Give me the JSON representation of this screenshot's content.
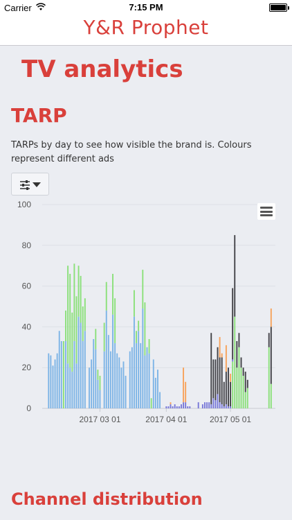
{
  "status_bar": {
    "carrier": "Carrier",
    "time": "7:15 PM"
  },
  "nav": {
    "title": "Y&R Prophet"
  },
  "page": {
    "title": "TV analytics"
  },
  "tarp": {
    "title": "TARP",
    "description": "TARPs by day to see how visible the brand is. Colours represent different ads",
    "filter_icon": "sliders-icon"
  },
  "bottom": {
    "title": "Channel distribution"
  },
  "colors": {
    "accent": "#d9403b"
  },
  "chart_data": {
    "type": "bar",
    "stacked": true,
    "xlabel": "",
    "ylabel": "",
    "ylim": [
      0,
      100
    ],
    "yticks": [
      0,
      20,
      40,
      60,
      80,
      100
    ],
    "xticks": [
      "2017 03 01",
      "2017 04 01",
      "2017 05 01"
    ],
    "grid": true,
    "legend_position": "bottom",
    "series": [
      {
        "color": "#7db4e6",
        "points": [
          [
            "2017-02-05",
            27
          ],
          [
            "2017-02-06",
            26
          ],
          [
            "2017-02-07",
            21
          ],
          [
            "2017-02-08",
            24
          ],
          [
            "2017-02-09",
            27
          ],
          [
            "2017-02-10",
            38
          ],
          [
            "2017-02-11",
            33
          ],
          [
            "2017-02-13",
            33
          ],
          [
            "2017-02-14",
            22
          ],
          [
            "2017-02-15",
            20
          ],
          [
            "2017-02-16",
            18
          ],
          [
            "2017-02-17",
            33
          ],
          [
            "2017-02-18",
            22
          ],
          [
            "2017-02-19",
            45
          ],
          [
            "2017-02-20",
            42
          ],
          [
            "2017-02-21",
            33
          ],
          [
            "2017-02-22",
            38
          ],
          [
            "2017-02-24",
            20
          ],
          [
            "2017-02-25",
            24
          ],
          [
            "2017-02-26",
            34
          ],
          [
            "2017-02-27",
            29
          ],
          [
            "2017-02-28",
            14
          ],
          [
            "2017-03-01",
            9
          ],
          [
            "2017-03-03",
            28
          ],
          [
            "2017-03-04",
            48
          ],
          [
            "2017-03-05",
            36
          ],
          [
            "2017-03-06",
            28
          ],
          [
            "2017-03-07",
            46
          ],
          [
            "2017-03-08",
            32
          ],
          [
            "2017-03-09",
            27
          ],
          [
            "2017-03-10",
            25
          ],
          [
            "2017-03-11",
            20
          ],
          [
            "2017-03-12",
            23
          ],
          [
            "2017-03-13",
            16
          ],
          [
            "2017-03-15",
            28
          ],
          [
            "2017-03-16",
            30
          ],
          [
            "2017-03-17",
            45
          ],
          [
            "2017-03-18",
            32
          ],
          [
            "2017-03-19",
            38
          ],
          [
            "2017-03-20",
            32
          ],
          [
            "2017-03-21",
            49
          ],
          [
            "2017-03-22",
            26
          ],
          [
            "2017-03-23",
            30
          ],
          [
            "2017-03-24",
            27
          ],
          [
            "2017-03-26",
            24
          ],
          [
            "2017-03-27",
            15
          ],
          [
            "2017-03-28",
            19
          ],
          [
            "2017-03-29",
            8
          ]
        ]
      },
      {
        "color": "#8be07a",
        "points": [
          [
            "2017-02-12",
            33
          ],
          [
            "2017-02-13",
            15
          ],
          [
            "2017-02-14",
            48
          ],
          [
            "2017-02-15",
            46
          ],
          [
            "2017-02-16",
            29
          ],
          [
            "2017-02-17",
            38
          ],
          [
            "2017-02-18",
            33
          ],
          [
            "2017-02-19",
            25
          ],
          [
            "2017-02-20",
            23
          ],
          [
            "2017-02-21",
            17
          ],
          [
            "2017-02-22",
            16
          ],
          [
            "2017-02-27",
            10
          ],
          [
            "2017-02-28",
            5
          ],
          [
            "2017-03-01",
            7
          ],
          [
            "2017-03-03",
            14
          ],
          [
            "2017-03-04",
            14
          ],
          [
            "2017-03-07",
            20
          ],
          [
            "2017-03-08",
            22
          ],
          [
            "2017-03-17",
            13
          ],
          [
            "2017-03-18",
            6
          ],
          [
            "2017-03-19",
            5
          ],
          [
            "2017-03-21",
            19
          ],
          [
            "2017-03-22",
            26
          ],
          [
            "2017-03-24",
            7
          ],
          [
            "2017-03-25",
            5
          ],
          [
            "2017-05-02",
            23
          ],
          [
            "2017-05-03",
            45
          ],
          [
            "2017-05-04",
            20
          ],
          [
            "2017-05-05",
            30
          ],
          [
            "2017-05-06",
            20
          ],
          [
            "2017-05-07",
            16
          ],
          [
            "2017-05-08",
            8
          ],
          [
            "2017-05-09",
            10
          ],
          [
            "2017-05-19",
            30
          ],
          [
            "2017-05-20",
            12
          ]
        ]
      },
      {
        "color": "#7878d8",
        "points": [
          [
            "2017-04-01",
            1
          ],
          [
            "2017-04-02",
            1
          ],
          [
            "2017-04-03",
            2
          ],
          [
            "2017-04-04",
            1
          ],
          [
            "2017-04-05",
            2
          ],
          [
            "2017-04-06",
            1
          ],
          [
            "2017-04-07",
            1
          ],
          [
            "2017-04-08",
            2
          ],
          [
            "2017-04-09",
            3
          ],
          [
            "2017-04-10",
            3
          ],
          [
            "2017-04-11",
            1
          ],
          [
            "2017-04-12",
            1
          ],
          [
            "2017-04-16",
            3
          ],
          [
            "2017-04-18",
            2
          ],
          [
            "2017-04-19",
            3
          ],
          [
            "2017-04-20",
            3
          ],
          [
            "2017-04-21",
            3
          ],
          [
            "2017-04-22",
            2
          ],
          [
            "2017-04-23",
            5
          ],
          [
            "2017-04-24",
            4
          ],
          [
            "2017-04-25",
            7
          ],
          [
            "2017-04-26",
            3
          ],
          [
            "2017-04-27",
            2
          ],
          [
            "2017-04-28",
            1
          ],
          [
            "2017-04-29",
            2
          ],
          [
            "2017-04-30",
            1
          ],
          [
            "2017-05-01",
            1
          ],
          [
            "2017-05-02",
            1
          ]
        ]
      },
      {
        "color": "#434348",
        "points": [
          [
            "2017-04-22",
            35
          ],
          [
            "2017-04-23",
            19
          ],
          [
            "2017-04-24",
            20
          ],
          [
            "2017-04-25",
            23
          ],
          [
            "2017-04-26",
            22
          ],
          [
            "2017-04-27",
            23
          ],
          [
            "2017-04-28",
            12
          ],
          [
            "2017-04-29",
            16
          ],
          [
            "2017-04-30",
            19
          ],
          [
            "2017-05-01",
            12
          ],
          [
            "2017-05-02",
            35
          ],
          [
            "2017-05-03",
            40
          ],
          [
            "2017-05-04",
            13
          ],
          [
            "2017-05-05",
            7
          ],
          [
            "2017-05-06",
            5
          ],
          [
            "2017-05-07",
            4
          ],
          [
            "2017-05-08",
            10
          ],
          [
            "2017-05-09",
            4
          ],
          [
            "2017-05-19",
            7
          ],
          [
            "2017-05-20",
            28
          ]
        ]
      },
      {
        "color": "#f7a35c",
        "points": [
          [
            "2017-04-03",
            1
          ],
          [
            "2017-04-09",
            17
          ],
          [
            "2017-04-10",
            10
          ],
          [
            "2017-04-26",
            10
          ],
          [
            "2017-04-27",
            2
          ],
          [
            "2017-04-29",
            13
          ],
          [
            "2017-05-01",
            4
          ],
          [
            "2017-05-20",
            9
          ]
        ]
      }
    ]
  }
}
